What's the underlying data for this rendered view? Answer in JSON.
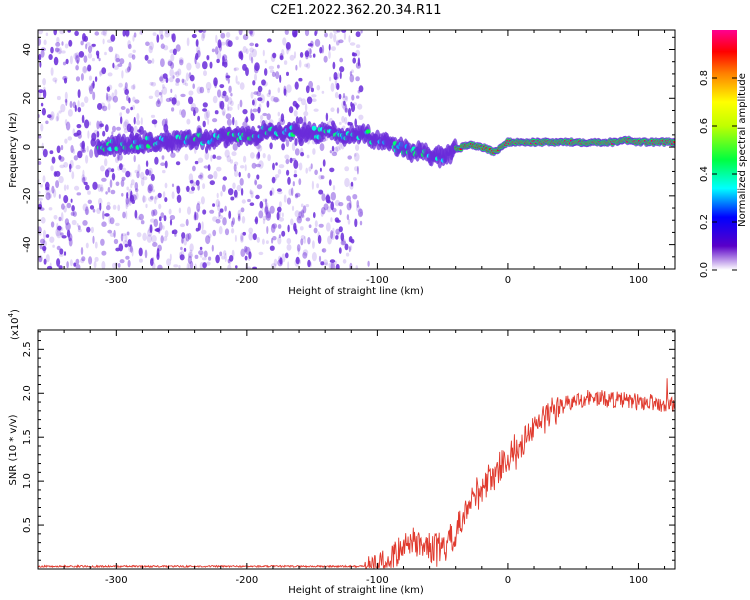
{
  "title": "C2E1.2022.362.20.34.R11",
  "colors": {
    "signal_line": "#e03a2e",
    "scatter": "#6a2bd9",
    "frame": "#000000"
  },
  "chart_data": [
    {
      "type": "heatmap",
      "name": "spectrogram",
      "xlabel": "Height of straight line (km)",
      "ylabel": "Frequency (Hz)",
      "xlim": [
        -360,
        128
      ],
      "ylim": [
        -50,
        48
      ],
      "xticks": [
        -300,
        -200,
        -100,
        0,
        100
      ],
      "yticks": [
        -40,
        -20,
        0,
        20,
        40
      ],
      "noise_region_x": [
        -360,
        -112
      ],
      "ridge": {
        "x": [
          -315,
          -280,
          -240,
          -215,
          -185,
          -160,
          -140,
          -125,
          -110,
          -100,
          -85,
          -70,
          -60,
          -50,
          -40,
          -30,
          -20,
          -10,
          0,
          20,
          40,
          60,
          80,
          90,
          100,
          128
        ],
        "y": [
          0,
          2,
          3,
          4,
          6,
          6,
          6,
          5,
          5,
          3,
          0,
          -2,
          -3,
          -4,
          -1,
          1,
          0,
          -2,
          2,
          2,
          2,
          2,
          2,
          3,
          2,
          2
        ],
        "amplitude": [
          0.2,
          0.25,
          0.25,
          0.3,
          0.35,
          0.4,
          0.4,
          0.4,
          0.45,
          0.45,
          0.4,
          0.4,
          0.45,
          0.5,
          0.9,
          0.92,
          0.9,
          0.9,
          0.95,
          0.95,
          0.95,
          0.95,
          0.95,
          0.95,
          0.95,
          0.95
        ]
      },
      "colorbar": {
        "label": "Normalized spectral amplitude",
        "range": [
          0.0,
          1.0
        ],
        "ticks": [
          0.0,
          0.2,
          0.4,
          0.6,
          0.8
        ],
        "tick_labels": [
          "0.0",
          "0.2",
          "0.4",
          "0.6",
          "0.8"
        ]
      }
    },
    {
      "type": "line",
      "name": "snr",
      "xlabel": "Height of straight line (km)",
      "ylabel": "SNR (10 * v/v)",
      "multiplier_label": "(x10",
      "multiplier_exp": "4",
      "xlim": [
        -360,
        128
      ],
      "ylim": [
        0,
        2.72
      ],
      "xticks": [
        -300,
        -200,
        -100,
        0,
        100
      ],
      "yticks": [
        0.5,
        1.0,
        1.5,
        2.0,
        2.5
      ],
      "ytick_labels": [
        "0.5",
        "1.0",
        "1.5",
        "2.0",
        "2.5"
      ],
      "trend": {
        "x": [
          -360,
          -110,
          -100,
          -90,
          -80,
          -70,
          -60,
          -50,
          -40,
          -30,
          -20,
          -10,
          0,
          10,
          20,
          30,
          40,
          60,
          80,
          100,
          110,
          120,
          128
        ],
        "y": [
          0.03,
          0.03,
          0.05,
          0.12,
          0.25,
          0.3,
          0.25,
          0.2,
          0.35,
          0.7,
          0.95,
          1.1,
          1.25,
          1.4,
          1.6,
          1.75,
          1.85,
          1.95,
          1.93,
          1.9,
          1.9,
          1.88,
          1.85
        ]
      },
      "noise_amplitude": [
        0.01,
        0.3
      ]
    }
  ]
}
